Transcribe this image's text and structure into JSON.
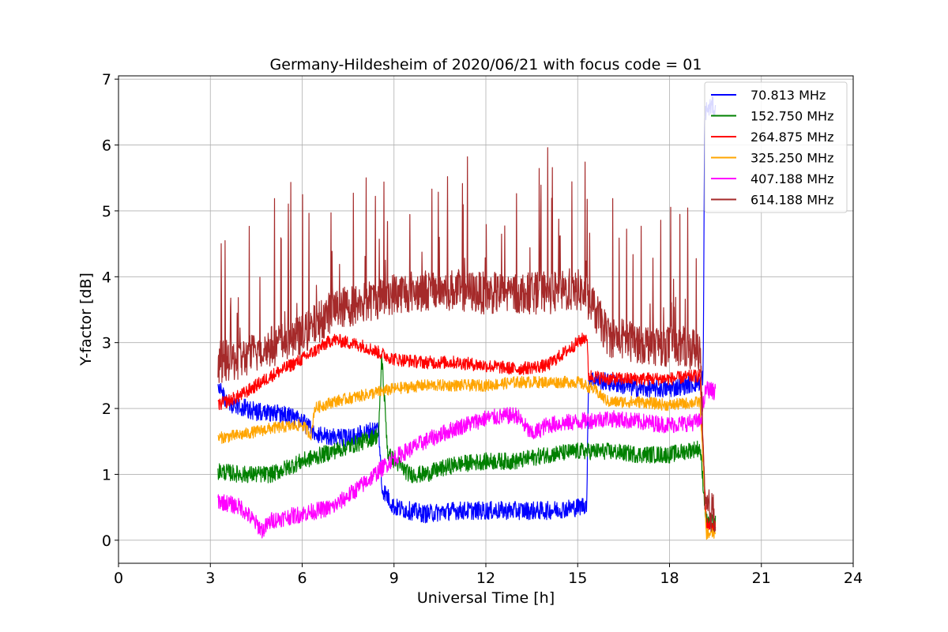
{
  "chart_data": {
    "type": "line",
    "title": "Germany-Hildesheim of 2020/06/21 with focus code = 01",
    "xlabel": "Universal Time [h]",
    "ylabel": "Y-factor [dB]",
    "xlim": [
      0,
      24
    ],
    "ylim": [
      -0.35,
      7.05
    ],
    "xticks": [
      0,
      3,
      6,
      9,
      12,
      15,
      18,
      21,
      24
    ],
    "yticks": [
      0,
      1,
      2,
      3,
      4,
      5,
      6,
      7
    ],
    "x_tick_labels": [
      "0",
      "3",
      "6",
      "9",
      "12",
      "15",
      "18",
      "21",
      "24"
    ],
    "y_tick_labels": [
      "0",
      "1",
      "2",
      "3",
      "4",
      "5",
      "6",
      "7"
    ],
    "grid": true,
    "legend_position": "top-right",
    "series": [
      {
        "name": " 70.813 MHz",
        "color": "#0000ff",
        "noise": 0.14,
        "points": [
          [
            3.25,
            2.35
          ],
          [
            3.5,
            2.1
          ],
          [
            4.5,
            1.95
          ],
          [
            5.5,
            1.9
          ],
          [
            6.0,
            1.8
          ],
          [
            6.5,
            1.6
          ],
          [
            7.5,
            1.55
          ],
          [
            8.5,
            1.7
          ],
          [
            8.6,
            0.8
          ],
          [
            9.0,
            0.5
          ],
          [
            10.0,
            0.4
          ],
          [
            11.0,
            0.45
          ],
          [
            12.0,
            0.45
          ],
          [
            13.0,
            0.45
          ],
          [
            14.0,
            0.45
          ],
          [
            15.0,
            0.5
          ],
          [
            15.3,
            0.55
          ],
          [
            15.35,
            2.45
          ],
          [
            16.0,
            2.4
          ],
          [
            17.0,
            2.3
          ],
          [
            18.0,
            2.3
          ],
          [
            19.0,
            2.4
          ],
          [
            19.1,
            2.5
          ],
          [
            19.15,
            6.5
          ],
          [
            19.4,
            6.6
          ],
          [
            19.5,
            6.5
          ]
        ]
      },
      {
        "name": "152.750 MHz",
        "color": "#008000",
        "noise": 0.13,
        "points": [
          [
            3.25,
            1.05
          ],
          [
            4.0,
            1.0
          ],
          [
            5.0,
            1.0
          ],
          [
            6.0,
            1.2
          ],
          [
            7.0,
            1.35
          ],
          [
            8.0,
            1.5
          ],
          [
            8.5,
            1.6
          ],
          [
            8.6,
            2.8
          ],
          [
            8.8,
            1.3
          ],
          [
            9.5,
            1.0
          ],
          [
            10.0,
            1.0
          ],
          [
            11.0,
            1.15
          ],
          [
            12.0,
            1.2
          ],
          [
            13.0,
            1.2
          ],
          [
            14.0,
            1.3
          ],
          [
            15.0,
            1.35
          ],
          [
            16.0,
            1.35
          ],
          [
            17.0,
            1.3
          ],
          [
            18.0,
            1.3
          ],
          [
            19.0,
            1.4
          ],
          [
            19.2,
            0.3
          ],
          [
            19.5,
            0.25
          ]
        ]
      },
      {
        "name": "264.875 MHz",
        "color": "#ff0000",
        "noise": 0.1,
        "points": [
          [
            3.25,
            2.05
          ],
          [
            4.0,
            2.2
          ],
          [
            5.0,
            2.5
          ],
          [
            6.0,
            2.75
          ],
          [
            7.0,
            3.05
          ],
          [
            8.0,
            2.95
          ],
          [
            9.0,
            2.75
          ],
          [
            10.0,
            2.7
          ],
          [
            11.0,
            2.7
          ],
          [
            12.0,
            2.65
          ],
          [
            13.0,
            2.6
          ],
          [
            14.0,
            2.65
          ],
          [
            15.0,
            3.0
          ],
          [
            15.3,
            3.1
          ],
          [
            15.35,
            2.5
          ],
          [
            16.0,
            2.45
          ],
          [
            17.0,
            2.45
          ],
          [
            18.0,
            2.45
          ],
          [
            19.0,
            2.5
          ],
          [
            19.2,
            0.25
          ],
          [
            19.5,
            0.2
          ]
        ]
      },
      {
        "name": "325.250 MHz",
        "color": "#ffa500",
        "noise": 0.09,
        "points": [
          [
            3.25,
            1.55
          ],
          [
            4.0,
            1.6
          ],
          [
            5.0,
            1.7
          ],
          [
            6.0,
            1.75
          ],
          [
            6.3,
            1.6
          ],
          [
            6.4,
            2.0
          ],
          [
            7.0,
            2.1
          ],
          [
            8.0,
            2.2
          ],
          [
            9.0,
            2.3
          ],
          [
            10.0,
            2.35
          ],
          [
            11.0,
            2.35
          ],
          [
            12.0,
            2.35
          ],
          [
            13.0,
            2.4
          ],
          [
            14.0,
            2.4
          ],
          [
            15.0,
            2.4
          ],
          [
            15.5,
            2.3
          ],
          [
            16.0,
            2.1
          ],
          [
            17.0,
            2.1
          ],
          [
            18.0,
            2.05
          ],
          [
            19.0,
            2.1
          ],
          [
            19.2,
            0.1
          ],
          [
            19.5,
            0.1
          ]
        ]
      },
      {
        "name": "407.188 MHz",
        "color": "#ff00ff",
        "noise": 0.13,
        "points": [
          [
            3.25,
            0.6
          ],
          [
            4.0,
            0.5
          ],
          [
            4.7,
            0.15
          ],
          [
            5.0,
            0.3
          ],
          [
            6.0,
            0.4
          ],
          [
            7.0,
            0.5
          ],
          [
            8.0,
            0.85
          ],
          [
            9.0,
            1.25
          ],
          [
            10.0,
            1.5
          ],
          [
            11.0,
            1.7
          ],
          [
            12.0,
            1.85
          ],
          [
            13.0,
            1.9
          ],
          [
            13.5,
            1.6
          ],
          [
            14.0,
            1.75
          ],
          [
            15.0,
            1.8
          ],
          [
            16.0,
            1.85
          ],
          [
            17.0,
            1.8
          ],
          [
            18.0,
            1.75
          ],
          [
            19.0,
            1.8
          ],
          [
            19.2,
            2.3
          ],
          [
            19.5,
            2.25
          ]
        ]
      },
      {
        "name": "614.188 MHz",
        "color": "#a52a2a",
        "noise": 0.32,
        "points": [
          [
            3.25,
            2.7
          ],
          [
            4.0,
            2.75
          ],
          [
            5.0,
            2.95
          ],
          [
            6.0,
            3.1
          ],
          [
            7.0,
            3.5
          ],
          [
            8.0,
            3.6
          ],
          [
            9.0,
            3.75
          ],
          [
            10.0,
            3.8
          ],
          [
            11.0,
            3.8
          ],
          [
            12.0,
            3.75
          ],
          [
            13.0,
            3.75
          ],
          [
            14.0,
            3.75
          ],
          [
            15.0,
            3.8
          ],
          [
            15.3,
            3.7
          ],
          [
            16.0,
            3.1
          ],
          [
            17.0,
            3.0
          ],
          [
            18.0,
            2.95
          ],
          [
            19.0,
            2.9
          ],
          [
            19.15,
            0.5
          ],
          [
            19.5,
            0.4
          ]
        ]
      }
    ]
  }
}
